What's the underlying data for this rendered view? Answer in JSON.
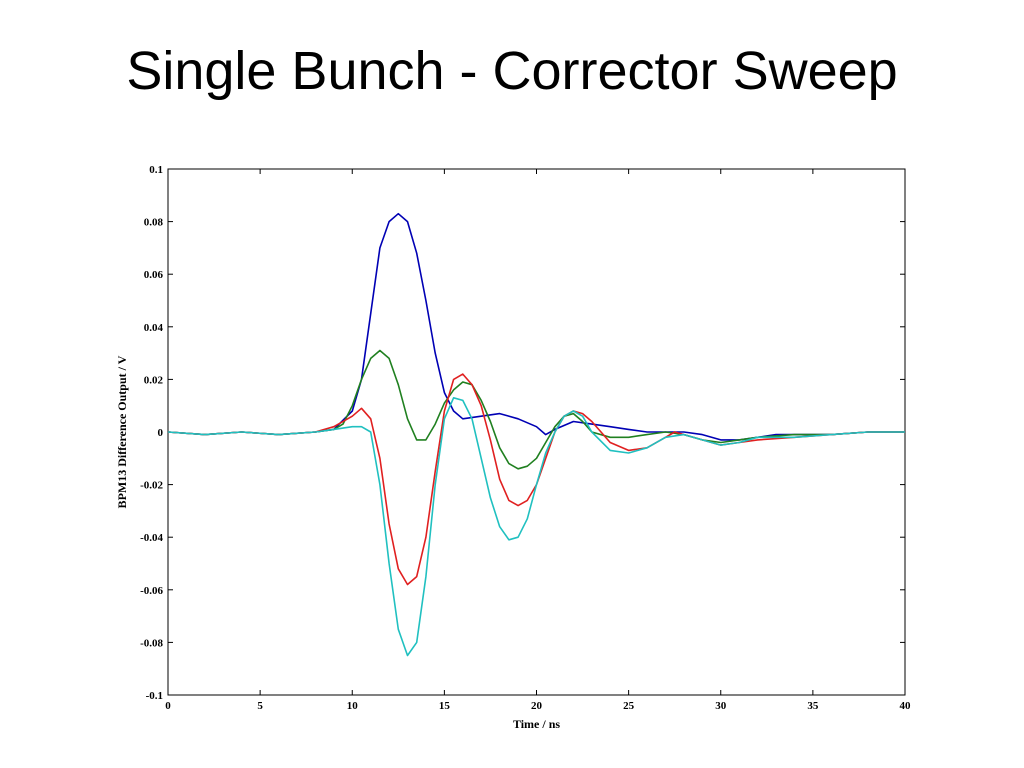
{
  "slide": {
    "title": "Single Bunch - Corrector Sweep"
  },
  "chart_data": {
    "type": "line",
    "title": "",
    "xlabel": "Time / ns",
    "ylabel": "BPM13 Difference Output / V",
    "xlim": [
      0,
      40
    ],
    "ylim": [
      -0.1,
      0.1
    ],
    "xticks": [
      0,
      5,
      10,
      15,
      20,
      25,
      30,
      35,
      40
    ],
    "xtick_labels": [
      "0",
      "5",
      "10",
      "15",
      "20",
      "25",
      "30",
      "35",
      "40"
    ],
    "yticks": [
      0.1,
      0.08,
      0.06,
      0.04,
      0.02,
      0,
      -0.02,
      -0.04,
      -0.06,
      -0.08,
      -0.1
    ],
    "ytick_labels": [
      "0.1",
      "0.08",
      "0.06",
      "0.04",
      "0.02",
      "0",
      "-0.02",
      "-0.04",
      "-0.06",
      "-0.08",
      "-0.1"
    ],
    "grid": false,
    "legend": "none",
    "series": [
      {
        "color": "#0000b4",
        "points": [
          [
            0,
            0
          ],
          [
            2,
            -0.001
          ],
          [
            4,
            0
          ],
          [
            6,
            -0.001
          ],
          [
            8,
            0
          ],
          [
            9,
            0.001
          ],
          [
            10,
            0.008
          ],
          [
            10.5,
            0.02
          ],
          [
            11,
            0.045
          ],
          [
            11.5,
            0.07
          ],
          [
            12,
            0.08
          ],
          [
            12.5,
            0.083
          ],
          [
            13,
            0.08
          ],
          [
            13.5,
            0.068
          ],
          [
            14,
            0.05
          ],
          [
            14.5,
            0.03
          ],
          [
            15,
            0.015
          ],
          [
            15.5,
            0.008
          ],
          [
            16,
            0.005
          ],
          [
            17,
            0.006
          ],
          [
            18,
            0.007
          ],
          [
            19,
            0.005
          ],
          [
            20,
            0.002
          ],
          [
            20.5,
            -0.001
          ],
          [
            21,
            0.001
          ],
          [
            22,
            0.004
          ],
          [
            23,
            0.003
          ],
          [
            24,
            0.002
          ],
          [
            25,
            0.001
          ],
          [
            26,
            0
          ],
          [
            27,
            0
          ],
          [
            28,
            0
          ],
          [
            29,
            -0.001
          ],
          [
            30,
            -0.003
          ],
          [
            31,
            -0.003
          ],
          [
            32,
            -0.002
          ],
          [
            33,
            -0.001
          ],
          [
            34,
            -0.001
          ],
          [
            36,
            -0.001
          ],
          [
            38,
            0
          ],
          [
            40,
            0
          ]
        ]
      },
      {
        "color": "#208020",
        "points": [
          [
            0,
            0
          ],
          [
            2,
            -0.001
          ],
          [
            4,
            0
          ],
          [
            6,
            -0.001
          ],
          [
            8,
            0
          ],
          [
            9,
            0.001
          ],
          [
            9.5,
            0.003
          ],
          [
            10,
            0.01
          ],
          [
            10.5,
            0.02
          ],
          [
            11,
            0.028
          ],
          [
            11.5,
            0.031
          ],
          [
            12,
            0.028
          ],
          [
            12.5,
            0.018
          ],
          [
            13,
            0.005
          ],
          [
            13.5,
            -0.003
          ],
          [
            14,
            -0.003
          ],
          [
            14.5,
            0.003
          ],
          [
            15,
            0.011
          ],
          [
            15.5,
            0.016
          ],
          [
            16,
            0.019
          ],
          [
            16.5,
            0.018
          ],
          [
            17,
            0.012
          ],
          [
            17.5,
            0.004
          ],
          [
            18,
            -0.006
          ],
          [
            18.5,
            -0.012
          ],
          [
            19,
            -0.014
          ],
          [
            19.5,
            -0.013
          ],
          [
            20,
            -0.01
          ],
          [
            20.5,
            -0.004
          ],
          [
            21,
            0.002
          ],
          [
            21.5,
            0.006
          ],
          [
            22,
            0.007
          ],
          [
            22.5,
            0.004
          ],
          [
            23,
            0
          ],
          [
            24,
            -0.002
          ],
          [
            25,
            -0.002
          ],
          [
            26,
            -0.001
          ],
          [
            27,
            0
          ],
          [
            28,
            -0.001
          ],
          [
            29,
            -0.003
          ],
          [
            30,
            -0.004
          ],
          [
            31,
            -0.003
          ],
          [
            32,
            -0.002
          ],
          [
            34,
            -0.001
          ],
          [
            36,
            -0.001
          ],
          [
            38,
            0
          ],
          [
            40,
            0
          ]
        ]
      },
      {
        "color": "#e02020",
        "points": [
          [
            0,
            0
          ],
          [
            2,
            -0.001
          ],
          [
            4,
            0
          ],
          [
            6,
            -0.001
          ],
          [
            8,
            0
          ],
          [
            9,
            0.002
          ],
          [
            10,
            0.006
          ],
          [
            10.5,
            0.009
          ],
          [
            11,
            0.005
          ],
          [
            11.5,
            -0.01
          ],
          [
            12,
            -0.035
          ],
          [
            12.5,
            -0.052
          ],
          [
            13,
            -0.058
          ],
          [
            13.5,
            -0.055
          ],
          [
            14,
            -0.04
          ],
          [
            14.5,
            -0.015
          ],
          [
            15,
            0.008
          ],
          [
            15.5,
            0.02
          ],
          [
            16,
            0.022
          ],
          [
            16.5,
            0.018
          ],
          [
            17,
            0.01
          ],
          [
            17.5,
            -0.003
          ],
          [
            18,
            -0.018
          ],
          [
            18.5,
            -0.026
          ],
          [
            19,
            -0.028
          ],
          [
            19.5,
            -0.026
          ],
          [
            20,
            -0.02
          ],
          [
            20.5,
            -0.01
          ],
          [
            21,
            0
          ],
          [
            21.5,
            0.006
          ],
          [
            22,
            0.008
          ],
          [
            22.5,
            0.007
          ],
          [
            23,
            0.004
          ],
          [
            23.5,
            0
          ],
          [
            24,
            -0.004
          ],
          [
            25,
            -0.007
          ],
          [
            26,
            -0.006
          ],
          [
            27,
            -0.002
          ],
          [
            27.5,
            0
          ],
          [
            28,
            -0.001
          ],
          [
            29,
            -0.003
          ],
          [
            30,
            -0.005
          ],
          [
            31,
            -0.004
          ],
          [
            32,
            -0.003
          ],
          [
            34,
            -0.002
          ],
          [
            36,
            -0.001
          ],
          [
            38,
            0
          ],
          [
            40,
            0
          ]
        ]
      },
      {
        "color": "#20c0c0",
        "points": [
          [
            0,
            0
          ],
          [
            2,
            -0.001
          ],
          [
            4,
            0
          ],
          [
            6,
            -0.001
          ],
          [
            8,
            0
          ],
          [
            9,
            0.001
          ],
          [
            10,
            0.002
          ],
          [
            10.5,
            0.002
          ],
          [
            11,
            0
          ],
          [
            11.5,
            -0.02
          ],
          [
            12,
            -0.05
          ],
          [
            12.5,
            -0.075
          ],
          [
            13,
            -0.085
          ],
          [
            13.5,
            -0.08
          ],
          [
            14,
            -0.055
          ],
          [
            14.5,
            -0.02
          ],
          [
            15,
            0.005
          ],
          [
            15.5,
            0.013
          ],
          [
            16,
            0.012
          ],
          [
            16.5,
            0.005
          ],
          [
            17,
            -0.01
          ],
          [
            17.5,
            -0.025
          ],
          [
            18,
            -0.036
          ],
          [
            18.5,
            -0.041
          ],
          [
            19,
            -0.04
          ],
          [
            19.5,
            -0.033
          ],
          [
            20,
            -0.02
          ],
          [
            20.5,
            -0.008
          ],
          [
            21,
            0
          ],
          [
            21.5,
            0.006
          ],
          [
            22,
            0.008
          ],
          [
            22.5,
            0.006
          ],
          [
            23,
            0
          ],
          [
            24,
            -0.007
          ],
          [
            25,
            -0.008
          ],
          [
            26,
            -0.006
          ],
          [
            27,
            -0.002
          ],
          [
            28,
            -0.001
          ],
          [
            29,
            -0.003
          ],
          [
            30,
            -0.005
          ],
          [
            31,
            -0.004
          ],
          [
            32,
            -0.002
          ],
          [
            34,
            -0.002
          ],
          [
            36,
            -0.001
          ],
          [
            38,
            0
          ],
          [
            40,
            0
          ]
        ]
      }
    ]
  }
}
